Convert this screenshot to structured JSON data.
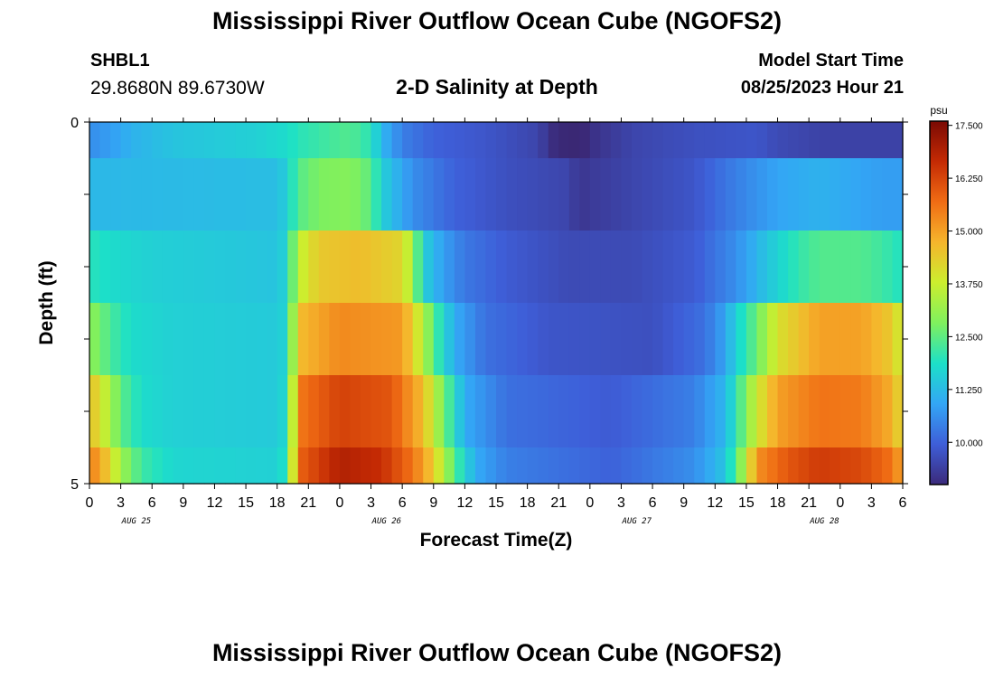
{
  "header": {
    "title": "Mississippi River Outflow Ocean Cube (NGOFS2)",
    "station_id": "SHBL1",
    "coordinates": "29.8680N  89.6730W",
    "subtitle": "2-D Salinity at Depth",
    "model_start_label": "Model Start Time",
    "model_start_value": "08/25/2023 Hour 21"
  },
  "footer": {
    "title": "Mississippi River Outflow Ocean Cube (NGOFS2)"
  },
  "colors": {
    "colormap_stops": [
      "#3b2a7a",
      "#3e5ed8",
      "#33a6f5",
      "#1ce0c8",
      "#7ff05e",
      "#ccee2e",
      "#f5b52c",
      "#f06c14",
      "#c42a04",
      "#7a0a04"
    ],
    "darkest": "#2a0d1f"
  },
  "chart_data": {
    "type": "heatmap",
    "xlabel": "Forecast Time(Z)",
    "ylabel": "Depth (ft)",
    "x_ticks": [
      "0",
      "3",
      "6",
      "9",
      "12",
      "15",
      "18",
      "21",
      "0",
      "3",
      "6",
      "9",
      "12",
      "15",
      "18",
      "21",
      "0",
      "3",
      "6",
      "9",
      "12",
      "15",
      "18",
      "21",
      "0",
      "3",
      "6"
    ],
    "date_labels": [
      {
        "label": "AUG 25",
        "tick_index": 1.5
      },
      {
        "label": "AUG 26",
        "tick_index": 9.5
      },
      {
        "label": "AUG 27",
        "tick_index": 17.5
      },
      {
        "label": "AUG 28",
        "tick_index": 23.5
      }
    ],
    "x_range_hours": [
      0,
      78
    ],
    "y_ticks": [
      "0",
      "5"
    ],
    "y_range": [
      0,
      5
    ],
    "colorbar": {
      "unit": "psu",
      "range": [
        9.0,
        17.6
      ],
      "tick_labels": [
        "17.500",
        "16.250",
        "15.000",
        "13.750",
        "12.500",
        "11.250",
        "10.000"
      ],
      "tick_values": [
        17.5,
        16.25,
        15.0,
        13.75,
        12.5,
        11.25,
        10.0
      ]
    },
    "depth_bands": [
      0,
      0.5,
      1.5,
      2.5,
      3.5,
      4.5,
      5.0
    ],
    "rows_keyframes": [
      [
        [
          0,
          10.6
        ],
        [
          2,
          10.8
        ],
        [
          4,
          11.1
        ],
        [
          8,
          11.4
        ],
        [
          16,
          11.6
        ],
        [
          19,
          11.8
        ],
        [
          20,
          12.0
        ],
        [
          25,
          12.4
        ],
        [
          27,
          12.0
        ],
        [
          28,
          11.2
        ],
        [
          30,
          10.4
        ],
        [
          33,
          10.0
        ],
        [
          38,
          9.8
        ],
        [
          43,
          9.5
        ],
        [
          45,
          8.9
        ],
        [
          47,
          8.8
        ],
        [
          48,
          9.1
        ],
        [
          52,
          9.5
        ],
        [
          58,
          9.7
        ],
        [
          64,
          9.8
        ],
        [
          66,
          9.6
        ],
        [
          70,
          9.45
        ],
        [
          78,
          9.45
        ]
      ],
      [
        [
          0,
          11.2
        ],
        [
          18,
          11.3
        ],
        [
          19,
          11.6
        ],
        [
          20,
          12.4
        ],
        [
          22,
          12.8
        ],
        [
          25,
          12.9
        ],
        [
          27,
          12.5
        ],
        [
          28,
          11.6
        ],
        [
          31,
          10.6
        ],
        [
          35,
          10.0
        ],
        [
          40,
          9.7
        ],
        [
          46,
          9.5
        ],
        [
          47,
          9.2
        ],
        [
          48,
          9.3
        ],
        [
          52,
          9.5
        ],
        [
          58,
          9.8
        ],
        [
          62,
          10.4
        ],
        [
          66,
          10.9
        ],
        [
          70,
          11.1
        ],
        [
          74,
          10.9
        ],
        [
          76,
          10.8
        ],
        [
          78,
          10.8
        ]
      ],
      [
        [
          0,
          12.0
        ],
        [
          2,
          11.8
        ],
        [
          6,
          11.6
        ],
        [
          12,
          11.5
        ],
        [
          18,
          11.4
        ],
        [
          19,
          11.7
        ],
        [
          20,
          13.6
        ],
        [
          22,
          14.4
        ],
        [
          26,
          14.6
        ],
        [
          30,
          14.2
        ],
        [
          31,
          13.2
        ],
        [
          32,
          11.6
        ],
        [
          34,
          10.8
        ],
        [
          36,
          10.3
        ],
        [
          40,
          9.9
        ],
        [
          46,
          9.6
        ],
        [
          52,
          9.6
        ],
        [
          58,
          9.9
        ],
        [
          62,
          10.6
        ],
        [
          65,
          11.4
        ],
        [
          68,
          12.1
        ],
        [
          70,
          12.4
        ],
        [
          74,
          12.4
        ],
        [
          76,
          12.2
        ],
        [
          78,
          11.9
        ]
      ],
      [
        [
          0,
          13.0
        ],
        [
          1,
          12.7
        ],
        [
          2,
          12.3
        ],
        [
          4,
          11.8
        ],
        [
          8,
          11.6
        ],
        [
          18,
          11.5
        ],
        [
          19,
          11.7
        ],
        [
          20,
          14.6
        ],
        [
          24,
          15.3
        ],
        [
          30,
          15.1
        ],
        [
          32,
          13.5
        ],
        [
          33,
          12.4
        ],
        [
          35,
          11.0
        ],
        [
          38,
          10.2
        ],
        [
          44,
          9.8
        ],
        [
          54,
          9.7
        ],
        [
          59,
          10.2
        ],
        [
          61,
          10.9
        ],
        [
          62,
          11.6
        ],
        [
          64,
          12.6
        ],
        [
          66,
          14.0
        ],
        [
          70,
          15.0
        ],
        [
          74,
          15.0
        ],
        [
          77,
          14.4
        ],
        [
          78,
          13.6
        ]
      ],
      [
        [
          0,
          14.6
        ],
        [
          1,
          14.0
        ],
        [
          2,
          13.3
        ],
        [
          3,
          12.5
        ],
        [
          5,
          11.8
        ],
        [
          8,
          11.6
        ],
        [
          18,
          11.5
        ],
        [
          19,
          11.8
        ],
        [
          20,
          15.5
        ],
        [
          24,
          16.3
        ],
        [
          29,
          16.0
        ],
        [
          32,
          14.6
        ],
        [
          34,
          12.7
        ],
        [
          36,
          11.0
        ],
        [
          40,
          10.2
        ],
        [
          50,
          9.9
        ],
        [
          58,
          10.4
        ],
        [
          61,
          11.2
        ],
        [
          62,
          12.0
        ],
        [
          64,
          13.8
        ],
        [
          66,
          15.0
        ],
        [
          70,
          15.6
        ],
        [
          74,
          15.5
        ],
        [
          77,
          14.8
        ],
        [
          78,
          14.0
        ]
      ],
      [
        [
          0,
          15.4
        ],
        [
          1,
          15.0
        ],
        [
          2,
          14.2
        ],
        [
          3,
          13.2
        ],
        [
          5,
          12.2
        ],
        [
          8,
          11.7
        ],
        [
          18,
          11.6
        ],
        [
          19,
          12.0
        ],
        [
          20,
          15.8
        ],
        [
          24,
          16.9
        ],
        [
          28,
          16.6
        ],
        [
          31,
          15.6
        ],
        [
          33,
          14.4
        ],
        [
          35,
          12.4
        ],
        [
          37,
          11.0
        ],
        [
          40,
          10.4
        ],
        [
          50,
          10.0
        ],
        [
          58,
          10.6
        ],
        [
          61,
          11.4
        ],
        [
          62,
          12.4
        ],
        [
          63,
          13.6
        ],
        [
          64,
          15.2
        ],
        [
          67,
          16.0
        ],
        [
          70,
          16.4
        ],
        [
          74,
          16.2
        ],
        [
          77,
          15.6
        ],
        [
          78,
          14.8
        ]
      ]
    ]
  }
}
